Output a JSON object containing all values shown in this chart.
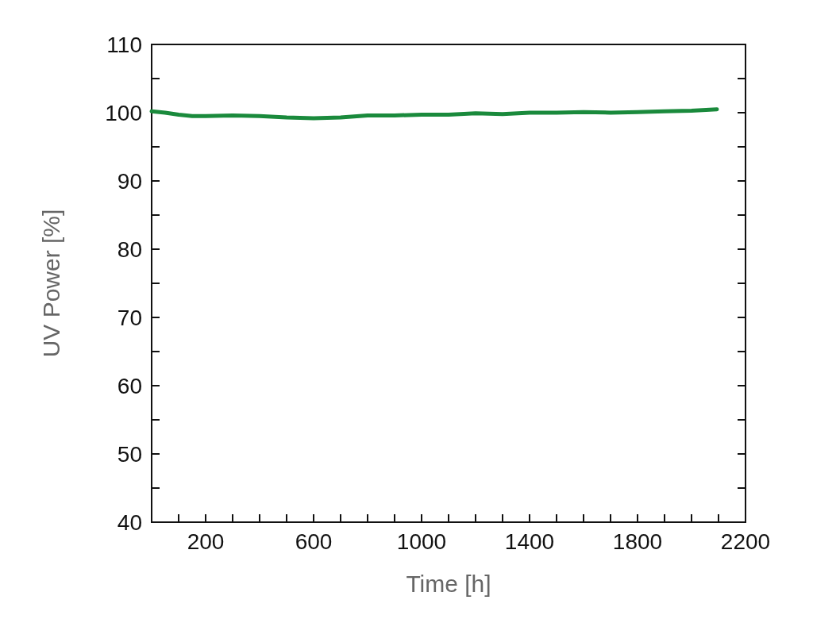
{
  "chart_data": {
    "type": "line",
    "xlabel": "Time [h]",
    "ylabel": "UV Power [%]",
    "xlim": [
      0,
      2200
    ],
    "xticks": [
      {
        "value": 100,
        "label": null
      },
      200,
      {
        "value": 300,
        "label": null
      },
      {
        "value": 400,
        "label": null
      },
      {
        "value": 500,
        "label": null
      },
      600,
      {
        "value": 700,
        "label": null
      },
      {
        "value": 800,
        "label": null
      },
      {
        "value": 900,
        "label": null
      },
      1000,
      {
        "value": 1100,
        "label": null
      },
      {
        "value": 1200,
        "label": null
      },
      {
        "value": 1300,
        "label": null
      },
      1400,
      {
        "value": 1500,
        "label": null
      },
      {
        "value": 1600,
        "label": null
      },
      {
        "value": 1700,
        "label": null
      },
      1800,
      {
        "value": 1900,
        "label": null
      },
      {
        "value": 2000,
        "label": null
      },
      {
        "value": 2100,
        "label": null
      },
      2200
    ],
    "ylim": [
      40,
      110
    ],
    "yticks": [
      40,
      {
        "value": 45,
        "label": null
      },
      50,
      {
        "value": 55,
        "label": null
      },
      60,
      {
        "value": 65,
        "label": null
      },
      70,
      {
        "value": 75,
        "label": null
      },
      80,
      {
        "value": 85,
        "label": null
      },
      90,
      {
        "value": 95,
        "label": null
      },
      100,
      {
        "value": 105,
        "label": null
      },
      110
    ],
    "grid": false,
    "marker": "none",
    "line_style": "solid",
    "series": [
      {
        "color": "#1a8a3c",
        "x": [
          0,
          50,
          100,
          150,
          200,
          300,
          400,
          500,
          600,
          700,
          800,
          900,
          1000,
          1100,
          1200,
          1300,
          1400,
          1500,
          1600,
          1700,
          1800,
          1900,
          2000,
          2094
        ],
        "values": [
          100.2,
          100.0,
          99.7,
          99.5,
          99.5,
          99.6,
          99.5,
          99.3,
          99.2,
          99.3,
          99.6,
          99.6,
          99.7,
          99.7,
          99.9,
          99.8,
          100.0,
          100.0,
          100.1,
          100.0,
          100.1,
          100.2,
          100.3,
          100.5
        ]
      }
    ]
  }
}
